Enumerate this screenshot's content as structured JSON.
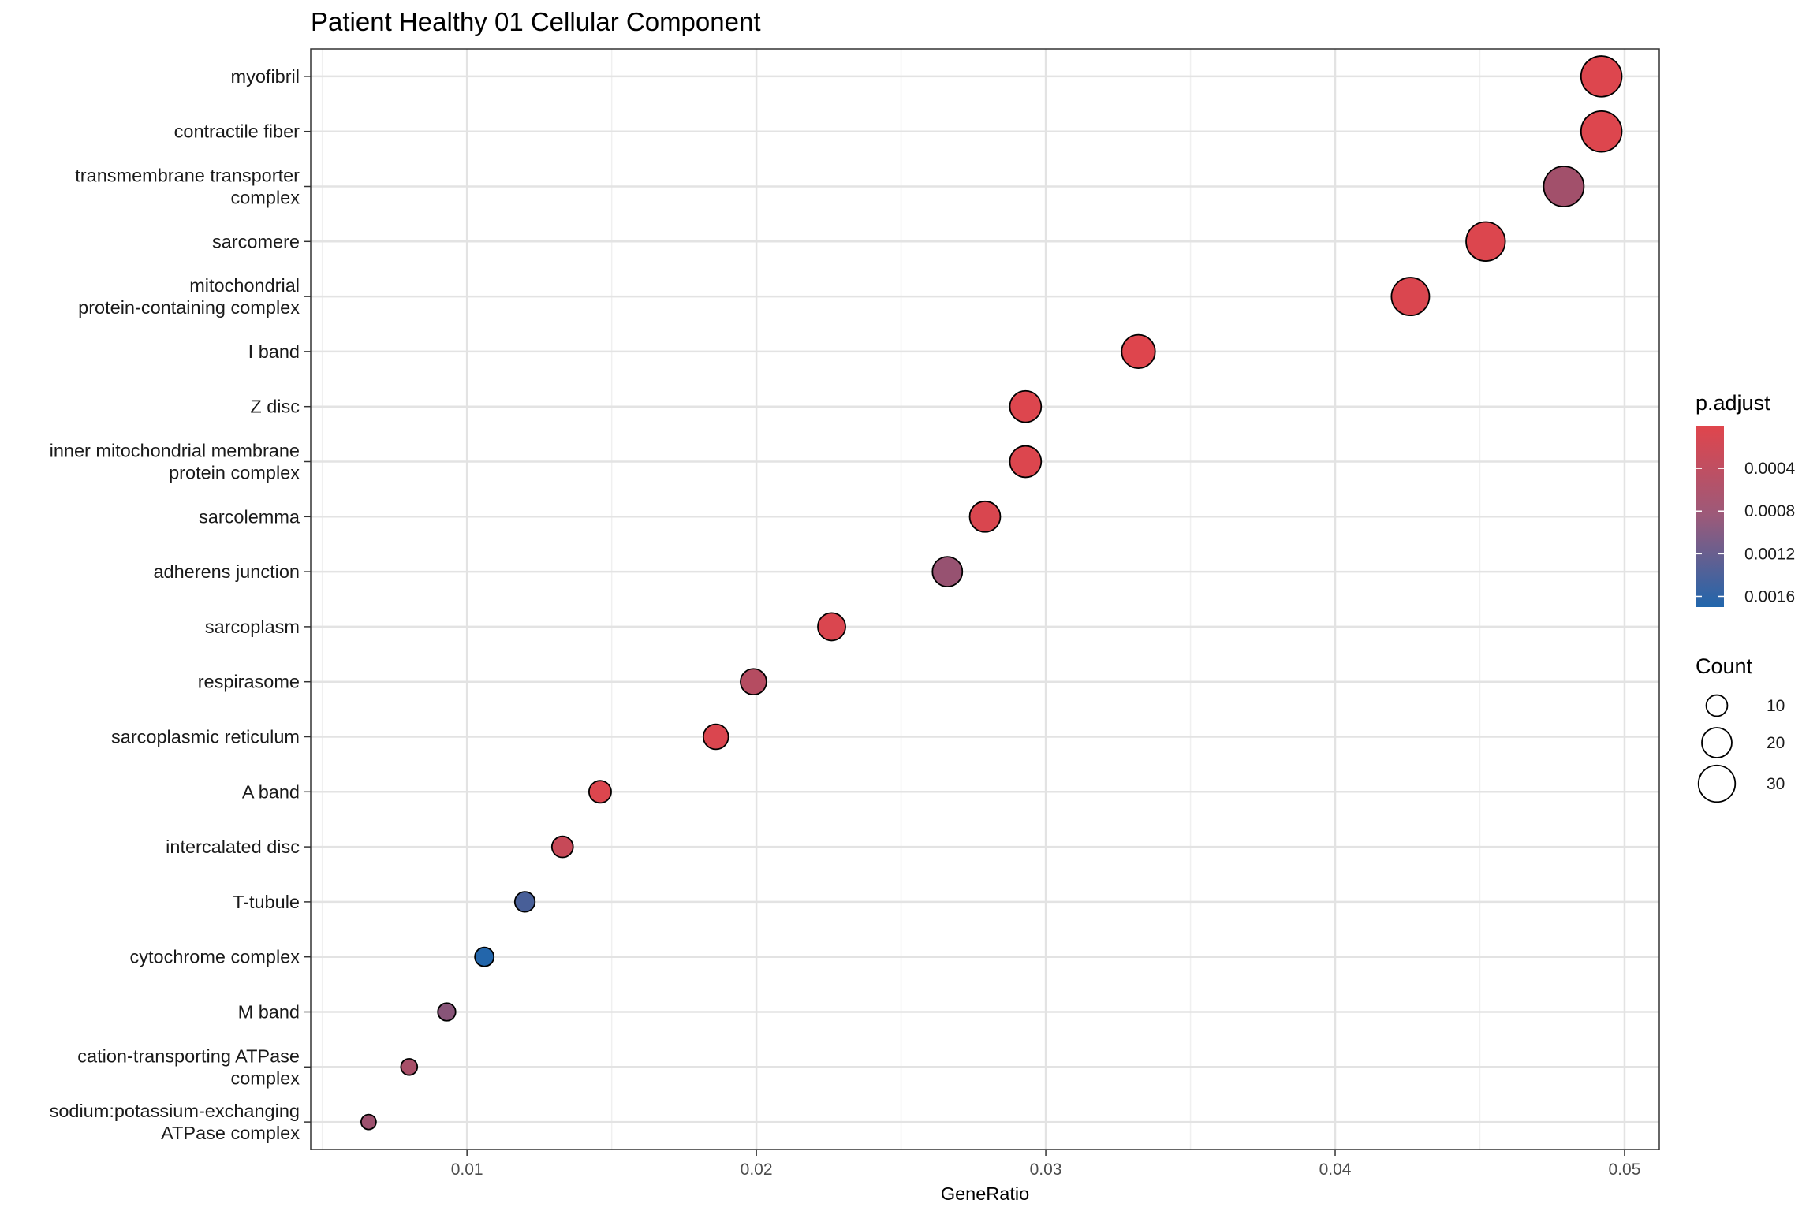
{
  "chart_data": {
    "type": "scatter",
    "title": "Patient Healthy 01 Cellular Component",
    "xlabel": "GeneRatio",
    "ylabel": "",
    "xlim": [
      0.0046,
      0.0512
    ],
    "xticks": [
      0.01,
      0.02,
      0.03,
      0.04,
      0.05
    ],
    "xtick_labels": [
      "0.01",
      "0.02",
      "0.03",
      "0.04",
      "0.05"
    ],
    "grid": true,
    "categories": [
      "myofibril",
      "contractile fiber",
      "transmembrane transporter complex",
      "sarcomere",
      "mitochondrial protein-containing complex",
      "I band",
      "Z disc",
      "inner mitochondrial membrane protein complex",
      "sarcolemma",
      "adherens junction",
      "sarcoplasm",
      "respirasome",
      "sarcoplasmic reticulum",
      "A band",
      "intercalated disc",
      "T-tubule",
      "cytochrome complex",
      "M band",
      "cation-transporting ATPase complex",
      "sodium:potassium-exchanging ATPase complex"
    ],
    "category_lines": [
      [
        "myofibril"
      ],
      [
        "contractile fiber"
      ],
      [
        "transmembrane transporter",
        "complex"
      ],
      [
        "sarcomere"
      ],
      [
        "mitochondrial",
        "protein-containing complex"
      ],
      [
        "I band"
      ],
      [
        "Z disc"
      ],
      [
        "inner mitochondrial membrane",
        "protein complex"
      ],
      [
        "sarcolemma"
      ],
      [
        "adherens junction"
      ],
      [
        "sarcoplasm"
      ],
      [
        "respirasome"
      ],
      [
        "sarcoplasmic reticulum"
      ],
      [
        "A band"
      ],
      [
        "intercalated disc"
      ],
      [
        "T-tubule"
      ],
      [
        "cytochrome complex"
      ],
      [
        "M band"
      ],
      [
        "cation-transporting ATPase",
        "complex"
      ],
      [
        "sodium:potassium-exchanging",
        "ATPase complex"
      ]
    ],
    "gene_ratio": [
      0.0492,
      0.0492,
      0.0479,
      0.0452,
      0.0426,
      0.0332,
      0.0293,
      0.0293,
      0.0279,
      0.0266,
      0.0226,
      0.0199,
      0.0186,
      0.0146,
      0.0133,
      0.012,
      0.0106,
      0.0093,
      0.008,
      0.0066
    ],
    "count": [
      37,
      37,
      36,
      34,
      32,
      25,
      22,
      22,
      21,
      20,
      17,
      15,
      14,
      11,
      10,
      9,
      8,
      7,
      6,
      5
    ],
    "p_adjust": [
      3e-05,
      3e-05,
      0.00055,
      4e-05,
      5e-05,
      2e-05,
      3e-05,
      4e-05,
      6e-05,
      0.00065,
      5e-05,
      0.00038,
      5e-05,
      4e-05,
      0.00022,
      0.00135,
      0.00168,
      0.00078,
      0.0005,
      0.0006
    ],
    "color_scale": {
      "title": "p.adjust",
      "low_color": "#E0454C",
      "high_color": "#2166AC",
      "domain": [
        0.0,
        0.0017
      ],
      "ticks": [
        0.0004,
        0.0008,
        0.0012,
        0.0016
      ],
      "tick_labels": [
        "0.0004",
        "0.0008",
        "0.0012",
        "0.0016"
      ]
    },
    "size_scale": {
      "title": "Count",
      "values": [
        10,
        20,
        30
      ],
      "labels": [
        "10",
        "20",
        "30"
      ]
    },
    "legend_position": "right"
  }
}
